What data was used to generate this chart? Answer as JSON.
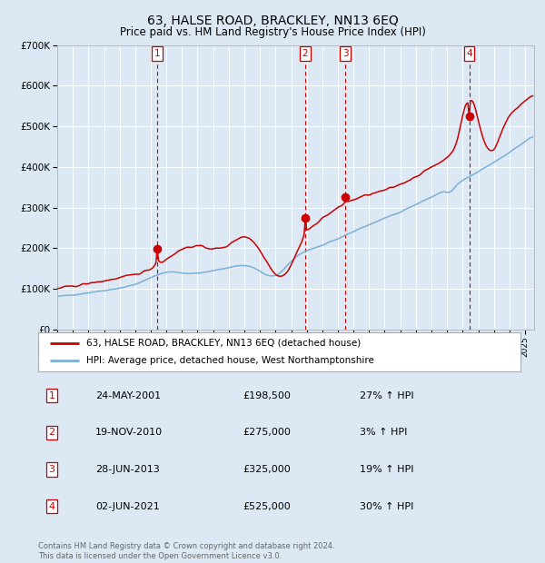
{
  "title": "63, HALSE ROAD, BRACKLEY, NN13 6EQ",
  "subtitle": "Price paid vs. HM Land Registry's House Price Index (HPI)",
  "title_fontsize": 10,
  "subtitle_fontsize": 8.5,
  "background_color": "#dce9f5",
  "plot_bg_color": "#dce9f5",
  "grid_color": "#ffffff",
  "ylim": [
    0,
    700000
  ],
  "yticks": [
    0,
    100000,
    200000,
    300000,
    400000,
    500000,
    600000,
    700000
  ],
  "ytick_labels": [
    "£0",
    "£100K",
    "£200K",
    "£300K",
    "£400K",
    "£500K",
    "£600K",
    "£700K"
  ],
  "sale_dates": [
    "2001-05-24",
    "2010-11-19",
    "2013-06-28",
    "2021-06-02"
  ],
  "sale_prices": [
    198500,
    275000,
    325000,
    525000
  ],
  "sale_labels": [
    "1",
    "2",
    "3",
    "4"
  ],
  "sale_color": "#cc0000",
  "hpi_line_color": "#7bafd4",
  "property_line_color": "#cc0000",
  "dashed_line_color": "#cc0000",
  "legend_entries": [
    "63, HALSE ROAD, BRACKLEY, NN13 6EQ (detached house)",
    "HPI: Average price, detached house, West Northamptonshire"
  ],
  "table_rows": [
    [
      "1",
      "24-MAY-2001",
      "£198,500",
      "27% ↑ HPI"
    ],
    [
      "2",
      "19-NOV-2010",
      "£275,000",
      "3% ↑ HPI"
    ],
    [
      "3",
      "28-JUN-2013",
      "£325,000",
      "19% ↑ HPI"
    ],
    [
      "4",
      "02-JUN-2021",
      "£525,000",
      "30% ↑ HPI"
    ]
  ],
  "footer": "Contains HM Land Registry data © Crown copyright and database right 2024.\nThis data is licensed under the Open Government Licence v3.0."
}
